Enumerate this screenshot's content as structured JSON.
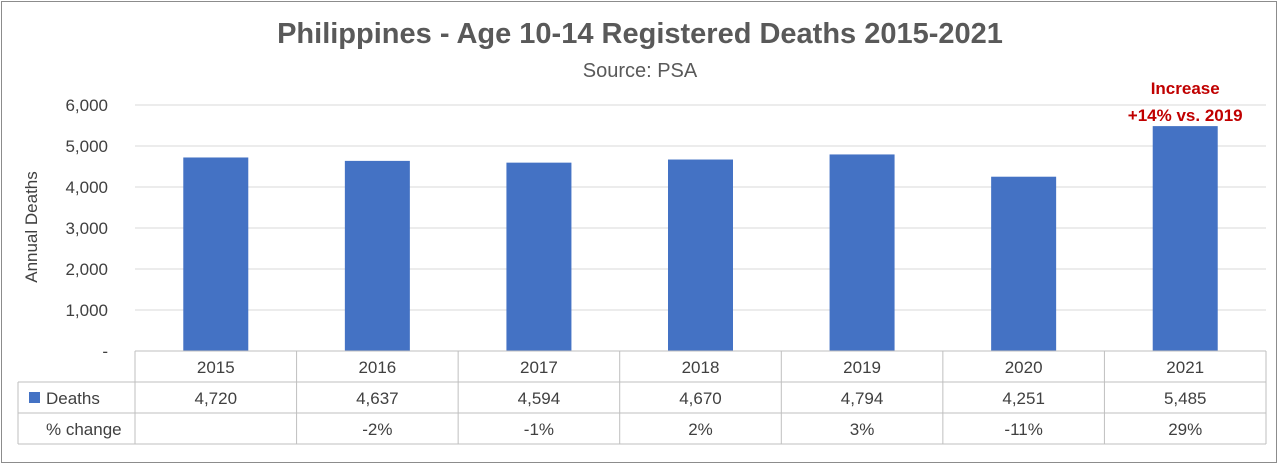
{
  "chart_data": {
    "type": "bar",
    "title": "Philippines - Age 10-14 Registered Deaths 2015-2021",
    "subtitle": "Source: PSA",
    "ylabel": "Annual Deaths",
    "xlabel": "",
    "categories": [
      "2015",
      "2016",
      "2017",
      "2018",
      "2019",
      "2020",
      "2021"
    ],
    "series": [
      {
        "name": "Deaths",
        "values": [
          4720,
          4637,
          4594,
          4670,
          4794,
          4251,
          5485
        ],
        "color": "#4472c4"
      }
    ],
    "ylim": [
      0,
      6000
    ],
    "yticks": [
      0,
      1000,
      2000,
      3000,
      4000,
      5000,
      6000
    ],
    "ytick_labels": [
      "-",
      "1,000",
      "2,000",
      "3,000",
      "4,000",
      "5,000",
      "6,000"
    ],
    "grid": true,
    "legend": "data-table",
    "annotation": {
      "lines": [
        "Increase",
        "+14% vs. 2019"
      ],
      "category": "2021",
      "color": "#c00000"
    },
    "data_table": {
      "rows": [
        {
          "label": "Deaths",
          "legend_key": true,
          "cells": [
            "4,720",
            "4,637",
            "4,594",
            "4,670",
            "4,794",
            "4,251",
            "5,485"
          ]
        },
        {
          "label": "% change",
          "legend_key": false,
          "cells": [
            "",
            "-2%",
            "-1%",
            "2%",
            "3%",
            "-11%",
            "29%"
          ]
        }
      ]
    }
  }
}
